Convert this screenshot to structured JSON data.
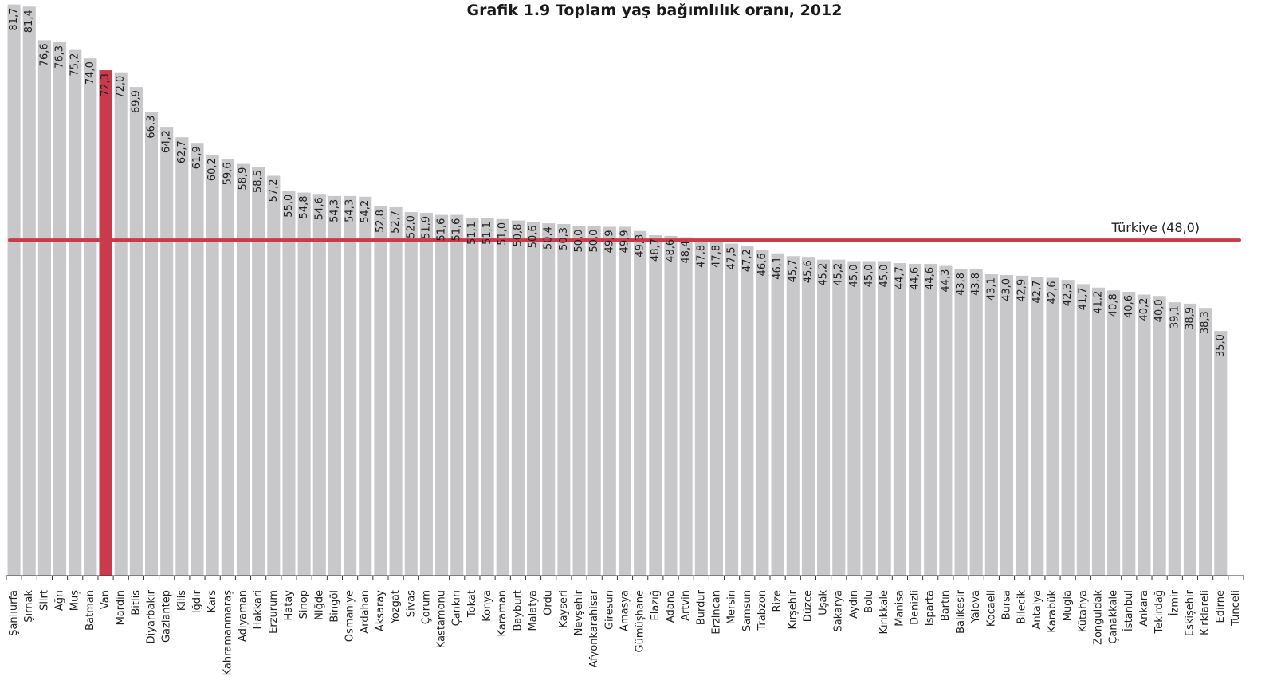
{
  "chart_data": {
    "type": "bar",
    "title": "Grafik 1.9 Toplam yaş bağımlılık oranı, 2012",
    "xlabel": "",
    "ylabel": "",
    "ylim": [
      0,
      82
    ],
    "grid": false,
    "categories": [
      "Şanlıurfa",
      "Şırnak",
      "Siirt",
      "Ağrı",
      "Muş",
      "Batman",
      "Van",
      "Mardin",
      "Bitlis",
      "Diyarbakır",
      "Gaziantep",
      "Kilis",
      "Iğdır",
      "Kars",
      "Kahramanmaraş",
      "Adıyaman",
      "Hakkari",
      "Erzurum",
      "Hatay",
      "Sinop",
      "Niğde",
      "Bingöl",
      "Osmaniye",
      "Ardahan",
      "Aksaray",
      "Yozgat",
      "Sivas",
      "Çorum",
      "Kastamonu",
      "Çankırı",
      "Tokat",
      "Konya",
      "Karaman",
      "Bayburt",
      "Malatya",
      "Ordu",
      "Kayseri",
      "Nevşehir",
      "Afyonkarahisar",
      "Giresun",
      "Amasya",
      "Gümüşhane",
      "Elazığ",
      "Adana",
      "Artvin",
      "Burdur",
      "Erzincan",
      "Mersin",
      "Samsun",
      "Trabzon",
      "Rize",
      "Kırşehir",
      "Düzce",
      "Uşak",
      "Sakarya",
      "Aydın",
      "Bolu",
      "Kırıkkale",
      "Manisa",
      "Denizli",
      "Isparta",
      "Bartın",
      "Balıkesir",
      "Yalova",
      "Kocaeli",
      "Bursa",
      "Bilecik",
      "Antalya",
      "Karabük",
      "Muğla",
      "Kütahya",
      "Zonguldak",
      "Çanakkale",
      "İstanbul",
      "Ankara",
      "Tekirdağ",
      "İzmir",
      "Eskişehir",
      "Kırklareli",
      "Edirne",
      "Tunceli"
    ],
    "values": [
      81.7,
      81.4,
      76.6,
      76.3,
      75.2,
      74.0,
      72.3,
      72.0,
      69.9,
      66.3,
      64.2,
      62.7,
      61.9,
      60.2,
      59.6,
      58.9,
      58.5,
      57.2,
      55.0,
      54.8,
      54.6,
      54.3,
      54.3,
      54.2,
      52.8,
      52.7,
      52.0,
      51.9,
      51.6,
      51.6,
      51.1,
      51.1,
      51.0,
      50.8,
      50.6,
      50.4,
      50.3,
      50.0,
      50.0,
      49.9,
      49.9,
      49.3,
      48.7,
      48.6,
      48.4,
      47.8,
      47.8,
      47.5,
      47.2,
      46.6,
      46.1,
      45.7,
      45.6,
      45.2,
      45.2,
      45.0,
      45.0,
      45.0,
      44.7,
      44.6,
      44.6,
      44.3,
      43.8,
      43.8,
      43.1,
      43.0,
      42.9,
      42.7,
      42.6,
      42.3,
      41.7,
      41.2,
      40.8,
      40.6,
      40.2,
      40.0,
      39.1,
      38.9,
      38.3,
      35.0,
      0
    ],
    "value_labels": [
      "81,7",
      "81,4",
      "76,6",
      "76,3",
      "75,2",
      "74,0",
      "72,3",
      "72,0",
      "69,9",
      "66,3",
      "64,2",
      "62,7",
      "61,9",
      "60,2",
      "59,6",
      "58,9",
      "58,5",
      "57,2",
      "55,0",
      "54,8",
      "54,6",
      "54,3",
      "54,3",
      "54,2",
      "52,8",
      "52,7",
      "52,0",
      "51,9",
      "51,6",
      "51,6",
      "51,1",
      "51,1",
      "51,0",
      "50,8",
      "50,6",
      "50,4",
      "50,3",
      "50,0",
      "50,0",
      "49,9",
      "49,9",
      "49,3",
      "48,7",
      "48,6",
      "48,4",
      "47,8",
      "47,8",
      "47,5",
      "47,2",
      "46,6",
      "46,1",
      "45,7",
      "45,6",
      "45,2",
      "45,2",
      "45,0",
      "45,0",
      "45,0",
      "44,7",
      "44,6",
      "44,6",
      "44,3",
      "43,8",
      "43,8",
      "43,1",
      "43,0",
      "42,9",
      "42,7",
      "42,6",
      "42,3",
      "41,7",
      "41,2",
      "40,8",
      "40,6",
      "40,2",
      "40,0",
      "39,1",
      "38,9",
      "38,3",
      "35,0",
      ""
    ],
    "highlight_category": "Van",
    "reference_line": {
      "value": 48.0,
      "label": "Türkiye (48,0)"
    },
    "colors": {
      "bar": "#c8c8ca",
      "highlight": "#c93a4a",
      "reference": "#c93a4a",
      "axis": "#333333"
    }
  }
}
